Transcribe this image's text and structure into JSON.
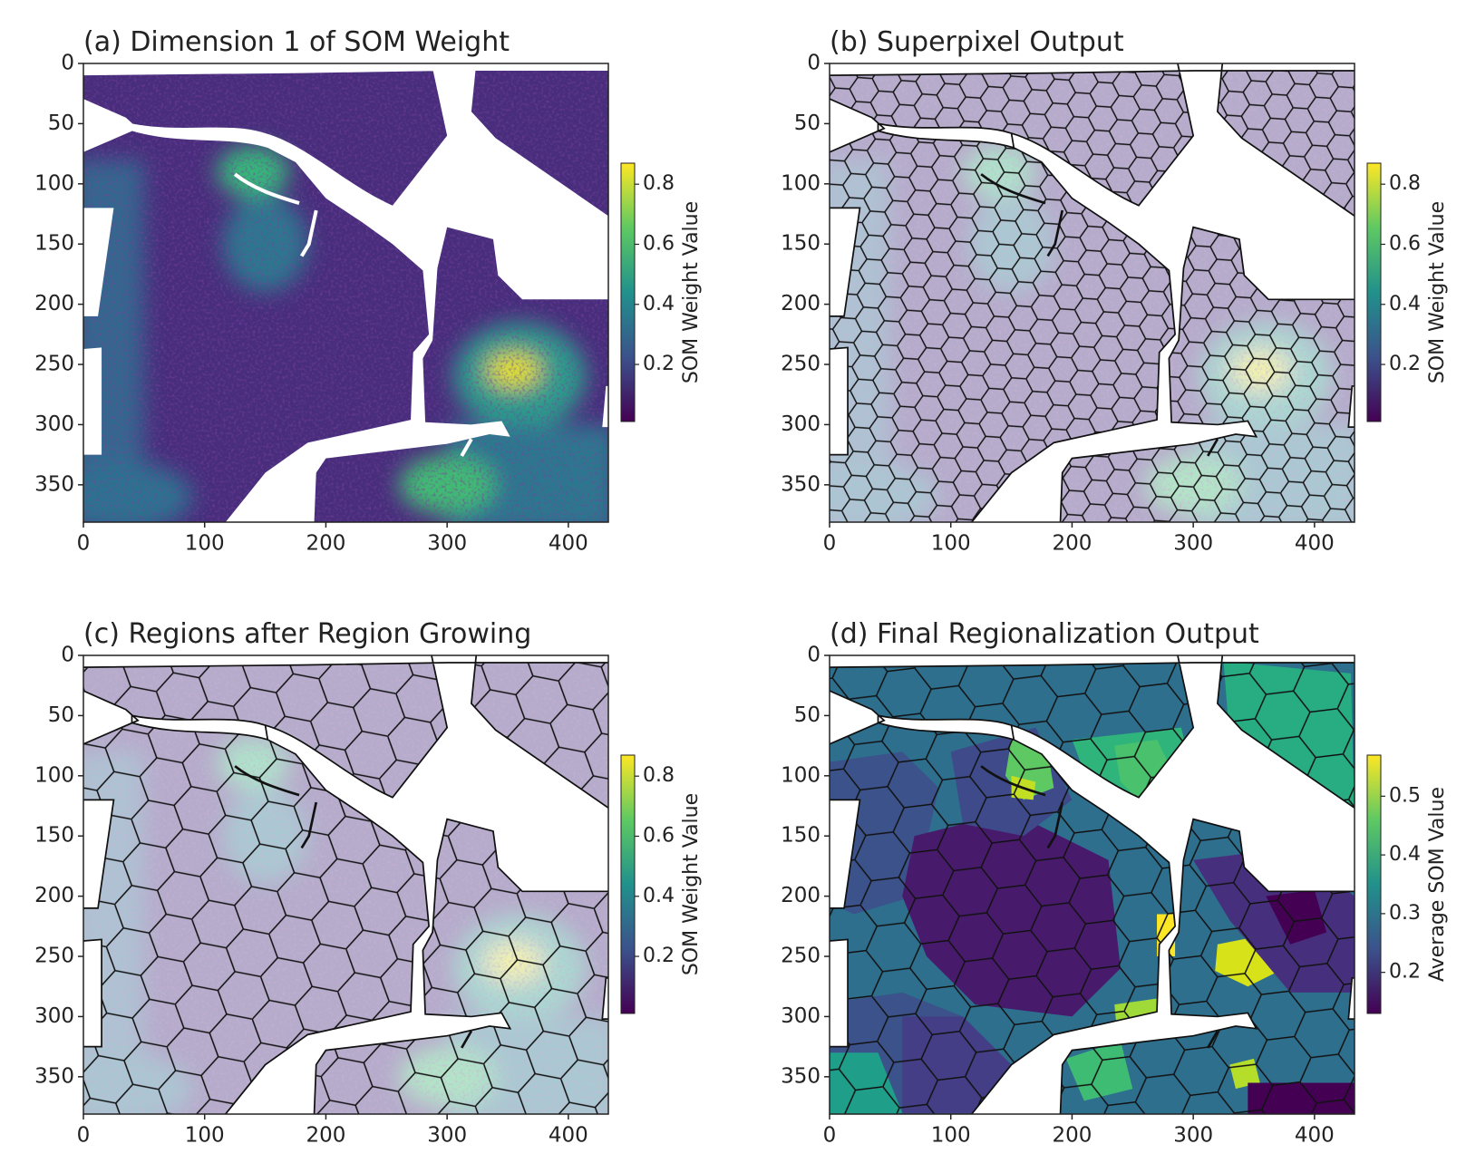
{
  "chart_data": [
    {
      "type": "image",
      "title": "(a) Dimension 1 of SOM Weight",
      "xlim": [
        0,
        433
      ],
      "ylim": [
        0,
        381
      ],
      "y_inverted": true,
      "xticks": [
        0,
        100,
        200,
        300,
        400
      ],
      "yticks": [
        0,
        50,
        100,
        150,
        200,
        250,
        300,
        350
      ],
      "colorbar": {
        "label": "SOM Weight Value",
        "lim": [
          0.01,
          0.87
        ],
        "ticks": [
          0.2,
          0.4,
          0.6,
          0.8
        ],
        "colormap": "viridis"
      }
    },
    {
      "type": "image",
      "title": "(b) Superpixel Output",
      "xlim": [
        0,
        433
      ],
      "ylim": [
        0,
        381
      ],
      "y_inverted": true,
      "xticks": [
        0,
        100,
        200,
        300,
        400
      ],
      "yticks": [
        0,
        50,
        100,
        150,
        200,
        250,
        300,
        350
      ],
      "colorbar": {
        "label": "SOM Weight Value",
        "lim": [
          0.01,
          0.87
        ],
        "ticks": [
          0.2,
          0.4,
          0.6,
          0.8
        ],
        "colormap": "viridis"
      }
    },
    {
      "type": "image",
      "title": "(c) Regions after Region Growing",
      "xlim": [
        0,
        433
      ],
      "ylim": [
        0,
        381
      ],
      "y_inverted": true,
      "xticks": [
        0,
        100,
        200,
        300,
        400
      ],
      "yticks": [
        0,
        50,
        100,
        150,
        200,
        250,
        300,
        350
      ],
      "colorbar": {
        "label": "SOM Weight Value",
        "lim": [
          0.01,
          0.87
        ],
        "ticks": [
          0.2,
          0.4,
          0.6,
          0.8
        ],
        "colormap": "viridis"
      }
    },
    {
      "type": "image",
      "title": "(d) Final Regionalization Output",
      "xlim": [
        0,
        433
      ],
      "ylim": [
        0,
        381
      ],
      "y_inverted": true,
      "xticks": [
        0,
        100,
        200,
        300,
        400
      ],
      "yticks": [
        0,
        50,
        100,
        150,
        200,
        250,
        300,
        350
      ],
      "colorbar": {
        "label": "Average SOM Value",
        "lim": [
          0.13,
          0.57
        ],
        "ticks": [
          0.2,
          0.3,
          0.4,
          0.5
        ],
        "colormap": "viridis"
      }
    }
  ]
}
